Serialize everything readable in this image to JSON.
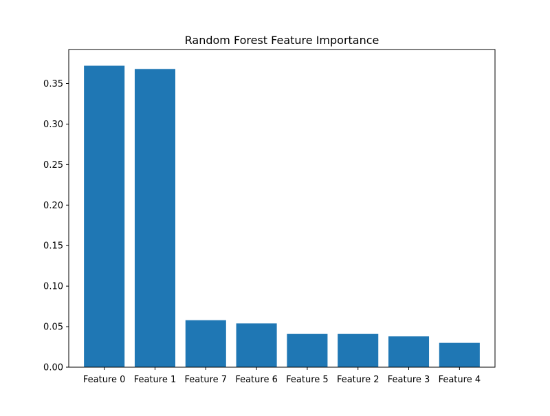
{
  "chart_data": {
    "type": "bar",
    "title": "Random Forest Feature Importance",
    "xlabel": "",
    "ylabel": "",
    "categories": [
      "Feature 0",
      "Feature 1",
      "Feature 7",
      "Feature 6",
      "Feature 5",
      "Feature 2",
      "Feature 3",
      "Feature 4"
    ],
    "values": [
      0.372,
      0.368,
      0.058,
      0.054,
      0.041,
      0.041,
      0.038,
      0.03
    ],
    "ylim": [
      0,
      0.392
    ],
    "yticks": [
      "0.00",
      "0.05",
      "0.10",
      "0.15",
      "0.20",
      "0.25",
      "0.30",
      "0.35"
    ],
    "bar_color": "#1f77b4",
    "grid": false,
    "legend": false
  }
}
